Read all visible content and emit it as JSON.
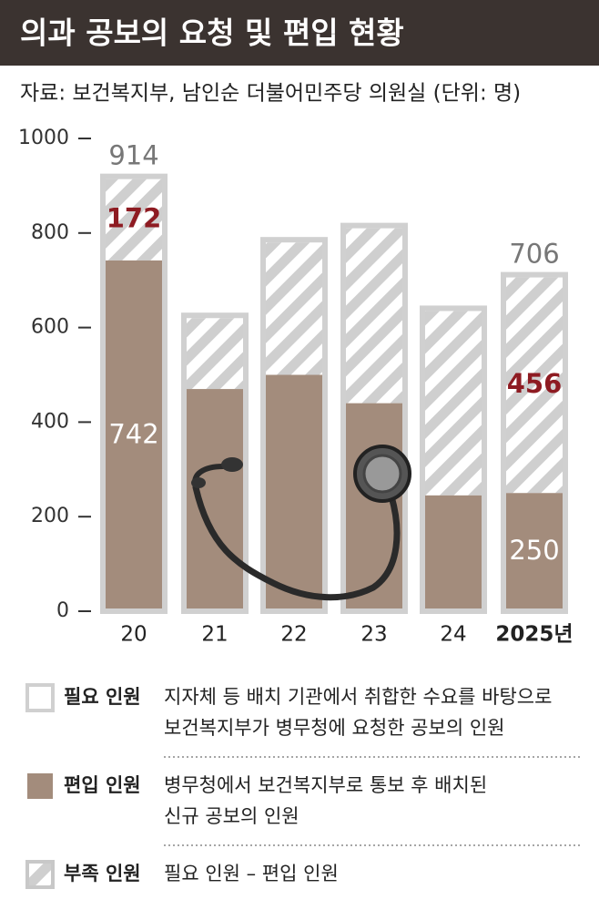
{
  "chart_data": {
    "type": "stacked-bar",
    "title": "의과 공보의 요청 및 편입 현황",
    "subtitle": "자료: 보건복지부, 남인순 더불어민주당 의원실 (단위: 명)",
    "categories": [
      "20",
      "21",
      "22",
      "23",
      "24",
      "2025년"
    ],
    "ylim": [
      0,
      1000
    ],
    "yticks": [
      0,
      200,
      400,
      600,
      800,
      1000
    ],
    "series": [
      {
        "name": "편입 인원",
        "color": "#a38c7c",
        "description": [
          "병무청에서 보건복지부로 통보 후 배치된",
          "신규 공보의 인원"
        ],
        "values": [
          742,
          470,
          500,
          440,
          245,
          250
        ],
        "value_labels": [
          "742",
          null,
          null,
          null,
          null,
          "250"
        ]
      },
      {
        "name": "부족 인원",
        "color": "#c8c8c8",
        "description": [
          "필요 인원 – 편입 인원"
        ],
        "values": [
          172,
          150,
          280,
          370,
          390,
          456
        ],
        "value_labels": [
          "172",
          null,
          null,
          null,
          null,
          "456"
        ]
      }
    ],
    "total": {
      "name": "필요 인원",
      "color": "#d0d0d0",
      "description": [
        "지자체 등 배치 기관에서 취합한 수요를 바탕으로",
        "보건복지부가 병무청에 요청한 공보의 인원"
      ],
      "labels": [
        914,
        null,
        null,
        null,
        null,
        706
      ]
    }
  }
}
